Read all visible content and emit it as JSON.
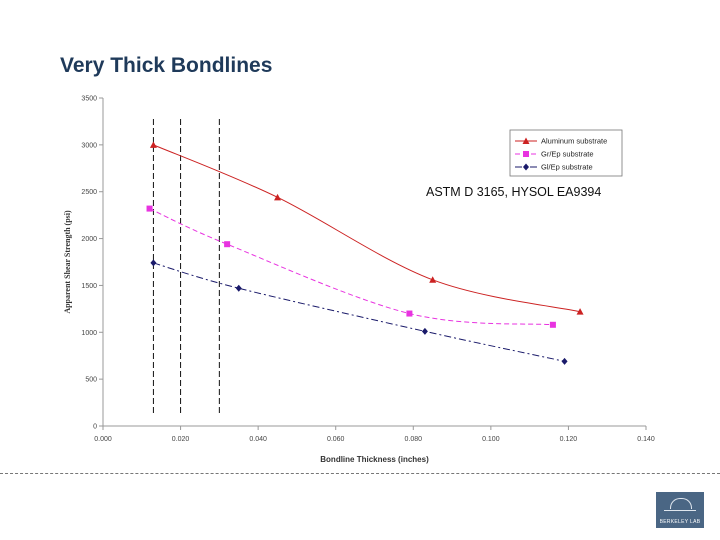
{
  "slide": {
    "title": "Very Thick Bondlines",
    "annotation": "ASTM D 3165, HYSOL EA9394",
    "footer_left": "",
    "footer_page": "",
    "logo_text": "BERKELEY LAB"
  },
  "chart_data": {
    "type": "line",
    "title": "",
    "xlabel": "Bondline Thickness (inches)",
    "ylabel": "Apparent Shear Strength (psi)",
    "xlim": [
      0.0,
      0.14
    ],
    "ylim": [
      0,
      3500
    ],
    "x_ticks": [
      "0.000",
      "0.020",
      "0.040",
      "0.060",
      "0.080",
      "0.100",
      "0.120",
      "0.140"
    ],
    "y_ticks": [
      "0",
      "500",
      "1000",
      "1500",
      "2000",
      "2500",
      "3000",
      "3500"
    ],
    "grid": false,
    "legend_position": "top-right",
    "reference_lines_x": [
      0.013,
      0.02,
      0.03
    ],
    "series": [
      {
        "name": "Aluminum substrate",
        "color": "#cc2222",
        "marker": "triangle",
        "dash": "solid",
        "x": [
          0.013,
          0.045,
          0.085,
          0.123
        ],
        "y": [
          3000,
          2440,
          1560,
          1220
        ]
      },
      {
        "name": "Gr/Ep substrate",
        "color": "#e833e0",
        "marker": "square",
        "dash": "dashed",
        "x": [
          0.012,
          0.032,
          0.079,
          0.116
        ],
        "y": [
          2320,
          1940,
          1200,
          1080
        ]
      },
      {
        "name": "Gl/Ep substrate",
        "color": "#1a1a6a",
        "marker": "diamond",
        "dash": "dashdot",
        "x": [
          0.013,
          0.035,
          0.083,
          0.119
        ],
        "y": [
          1740,
          1470,
          1010,
          690
        ]
      }
    ]
  }
}
